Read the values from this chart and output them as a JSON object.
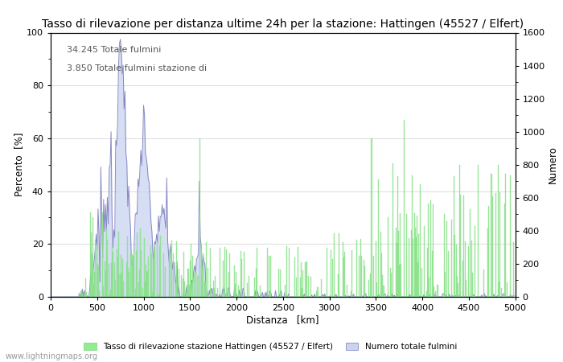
{
  "title": "Tasso di rilevazione per distanza ultime 24h per la stazione: Hattingen (45527 / Elfert)",
  "xlabel": "Distanza   [km]",
  "ylabel_left": "Percento  [%]",
  "ylabel_right": "Numero",
  "annotation1": "34.245 Totale fulmini",
  "annotation2": "3.850 Totale fulmini stazione di",
  "watermark": "www.lightningmaps.org",
  "legend_bar": "Tasso di rilevazione stazione Hattingen (45527 / Elfert)",
  "legend_area": "Numero totale fulmini",
  "xlim": [
    0,
    5000
  ],
  "ylim_left": [
    0,
    100
  ],
  "ylim_right": [
    0,
    1600
  ],
  "xticks": [
    0,
    500,
    1000,
    1500,
    2000,
    2500,
    3000,
    3500,
    4000,
    4500,
    5000
  ],
  "yticks_left": [
    0,
    20,
    40,
    60,
    80,
    100
  ],
  "yticks_right": [
    0,
    200,
    400,
    600,
    800,
    1000,
    1200,
    1400,
    1600
  ],
  "bar_color": "#90EE90",
  "area_color": "#c8d4f0",
  "line_color": "#7777bb",
  "bar_edge_color": "#78cc78",
  "background_color": "#ffffff",
  "title_fontsize": 10,
  "label_fontsize": 8.5,
  "tick_fontsize": 8
}
